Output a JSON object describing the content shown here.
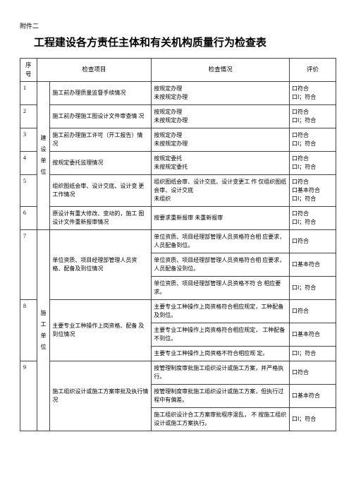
{
  "attachment": "附件二",
  "title": "工程建设各方责任主体和有关机构质量行为检查表",
  "header": {
    "seq": "序号",
    "unit": "",
    "item": "检查项目",
    "check": "检查情况",
    "eval": "评价"
  },
  "unit_labels": {
    "build": "建\n设\n单\n位",
    "construct": "施\n工\n单\n位"
  },
  "rows": [
    {
      "seq": "1",
      "item": "施工前办理质量监督手续情况",
      "check": "按规定办理\n未按规定办理",
      "eval": "口符合\n口Ⅰ；符合"
    },
    {
      "seq": "2",
      "item": "施工前办理施工图设计文件审查情 况",
      "check": "按规定办理\n未按规定办理",
      "eval": "口符合\n口Ⅰ；符合"
    },
    {
      "seq": "3",
      "item": "施工前办理施工许可（开工报告）情 况",
      "check": "按规定办理\n未按规定办理",
      "eval": "口符合\n口Ⅰ；符合"
    },
    {
      "seq": "4",
      "item": "按规定委托监理情况",
      "check": "按规定委托\n未按规定委托",
      "eval": "口符合\n口Ⅰ；符合"
    },
    {
      "seq": "5",
      "item": "组织图纸会审、设计交底、设计变 更工作情况",
      "check": "组织图纸会审、设计交底、设计变更工 作 仅组织图纸会审、设计交底\n未组织",
      "eval": "口符合\n口基本符合\n口Ⅰ；符合"
    },
    {
      "seq": "6",
      "item": "原设计有重大修改、变动的，施工 图设计文件重新报审情况",
      "check": "按要求重新报审 未重新报审",
      "eval": "口符合\n口Ⅰ；符合"
    },
    {
      "seq": "7",
      "item": "单位资质、项目经理部管理人员资 格、配备及到位情况",
      "checks": [
        "单位资质、项目经理部管理人员资格符合相 应要求，人员配备到位。",
        "单位资质、项目经理部管理人员资格符合相 应要求，人员配备没到位。",
        "单位资质、项目经理部管理人员资格不符 合 相应要求。"
      ],
      "evals": [
        "口符合",
        "口基本符合",
        "口Ⅰ；符合"
      ]
    },
    {
      "seq": "8",
      "item": "主要专业工种操作上岗资格、配备 及到位情况",
      "checks": [
        "主要专业工种操作上岗资格符合相应规定，工种配备及到位。",
        "主要专业工种操作上岗资格符合相应规定， 工种配备不到位。",
        "主要专业工种操作上岗资格不符合相应规 定。"
      ],
      "evals": [
        "口符合",
        "口基本符合",
        "口Ⅰ；符合"
      ]
    },
    {
      "seq": "9",
      "item": "施工组织设计或施工方案审批及执行情况",
      "checks": [
        "按管理制度审批施工组织设计或施工方案，并严格执行。",
        "按管理制度审批施工组织设计或施工方案，但执行过程中有偏差。",
        "施工组织设计合工方案审批程序混乱，   不 按施工组织设计或施工方案执行。"
      ],
      "evals": [
        "口符合",
        "口基本符合",
        "口Ⅰ；符合"
      ]
    }
  ]
}
